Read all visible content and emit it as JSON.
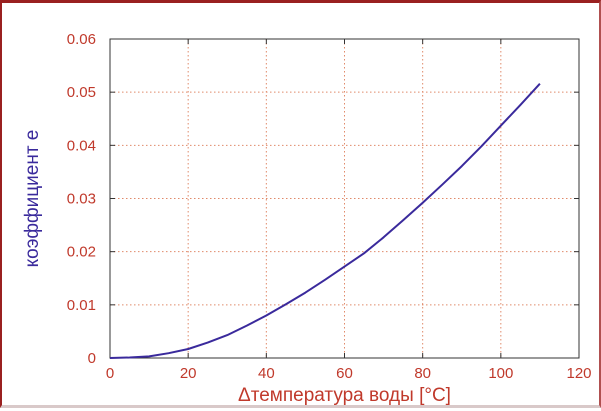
{
  "colors": {
    "accent": "#3a2a9c",
    "grid": "#e08a6a",
    "tick_text": "#c0392b",
    "x_title": "#c0392b",
    "y_title": "#3a2a9c",
    "frame": "#9a2020",
    "axes": "#333333"
  },
  "chart_data": {
    "type": "line",
    "xlabel": "Δтемпература воды [°C]",
    "ylabel": "коэффициент e",
    "xlim": [
      0,
      120
    ],
    "ylim": [
      0,
      0.06
    ],
    "xticks": [
      0,
      20,
      40,
      60,
      80,
      100,
      120
    ],
    "yticks": [
      0,
      0.01,
      0.02,
      0.03,
      0.04,
      0.05,
      0.06
    ],
    "xtick_labels": [
      "0",
      "20",
      "40",
      "60",
      "80",
      "100",
      "120"
    ],
    "ytick_labels": [
      "0",
      "0.01",
      "0.02",
      "0.03",
      "0.04",
      "0.05",
      "0.06"
    ],
    "grid": true,
    "series": [
      {
        "x": [
          0,
          5,
          10,
          15,
          20,
          25,
          30,
          35,
          40,
          45,
          50,
          55,
          60,
          65,
          70,
          75,
          80,
          85,
          90,
          95,
          100,
          105,
          110
        ],
        "y": [
          0,
          0.0001,
          0.0003,
          0.0009,
          0.0017,
          0.0029,
          0.0043,
          0.0061,
          0.008,
          0.0101,
          0.0123,
          0.0147,
          0.0172,
          0.0197,
          0.0227,
          0.0259,
          0.0292,
          0.0326,
          0.0361,
          0.0398,
          0.0437,
          0.0476,
          0.0516
        ]
      }
    ]
  }
}
